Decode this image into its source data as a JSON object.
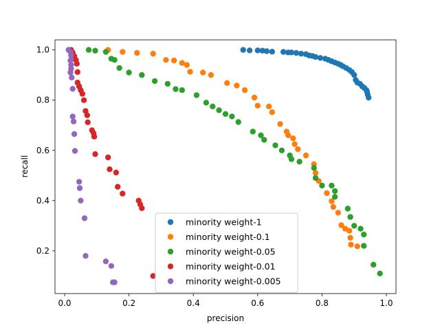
{
  "chart_data": {
    "type": "scatter",
    "title": "",
    "xlabel": "precision",
    "ylabel": "recall",
    "xlim": [
      -0.03,
      1.03
    ],
    "ylim": [
      0.03,
      1.04
    ],
    "xticks": [
      "0.0",
      "0.2",
      "0.4",
      "0.6",
      "0.8",
      "1.0"
    ],
    "yticks": [
      "0.2",
      "0.4",
      "0.6",
      "0.8",
      "1.0"
    ],
    "grid": false,
    "legend_position": "lower center",
    "series": [
      {
        "name": "minority weight-1",
        "color": "#1f77b4",
        "points": [
          [
            0.555,
            1.0
          ],
          [
            0.575,
            0.998
          ],
          [
            0.6,
            0.998
          ],
          [
            0.615,
            0.997
          ],
          [
            0.628,
            0.995
          ],
          [
            0.645,
            0.993
          ],
          [
            0.68,
            0.992
          ],
          [
            0.695,
            0.99
          ],
          [
            0.705,
            0.99
          ],
          [
            0.72,
            0.988
          ],
          [
            0.735,
            0.985
          ],
          [
            0.75,
            0.983
          ],
          [
            0.76,
            0.978
          ],
          [
            0.77,
            0.976
          ],
          [
            0.78,
            0.972
          ],
          [
            0.795,
            0.968
          ],
          [
            0.81,
            0.965
          ],
          [
            0.82,
            0.96
          ],
          [
            0.83,
            0.955
          ],
          [
            0.84,
            0.95
          ],
          [
            0.85,
            0.945
          ],
          [
            0.858,
            0.94
          ],
          [
            0.865,
            0.935
          ],
          [
            0.875,
            0.928
          ],
          [
            0.885,
            0.92
          ],
          [
            0.893,
            0.912
          ],
          [
            0.9,
            0.9
          ],
          [
            0.905,
            0.88
          ],
          [
            0.91,
            0.87
          ],
          [
            0.918,
            0.865
          ],
          [
            0.925,
            0.855
          ],
          [
            0.932,
            0.848
          ],
          [
            0.938,
            0.84
          ],
          [
            0.94,
            0.833
          ],
          [
            0.942,
            0.822
          ],
          [
            0.945,
            0.81
          ]
        ]
      },
      {
        "name": "minority weight-0.1",
        "color": "#ff7f0e",
        "points": [
          [
            0.135,
            1.0
          ],
          [
            0.18,
            0.992
          ],
          [
            0.225,
            0.988
          ],
          [
            0.275,
            0.985
          ],
          [
            0.315,
            0.96
          ],
          [
            0.34,
            0.958
          ],
          [
            0.365,
            0.948
          ],
          [
            0.38,
            0.94
          ],
          [
            0.39,
            0.913
          ],
          [
            0.43,
            0.91
          ],
          [
            0.455,
            0.9
          ],
          [
            0.505,
            0.868
          ],
          [
            0.535,
            0.858
          ],
          [
            0.56,
            0.84
          ],
          [
            0.59,
            0.81
          ],
          [
            0.6,
            0.778
          ],
          [
            0.635,
            0.775
          ],
          [
            0.645,
            0.752
          ],
          [
            0.67,
            0.705
          ],
          [
            0.69,
            0.675
          ],
          [
            0.695,
            0.66
          ],
          [
            0.71,
            0.648
          ],
          [
            0.715,
            0.625
          ],
          [
            0.725,
            0.605
          ],
          [
            0.75,
            0.58
          ],
          [
            0.775,
            0.545
          ],
          [
            0.78,
            0.51
          ],
          [
            0.79,
            0.478
          ],
          [
            0.815,
            0.43
          ],
          [
            0.83,
            0.398
          ],
          [
            0.835,
            0.375
          ],
          [
            0.85,
            0.352
          ],
          [
            0.86,
            0.302
          ],
          [
            0.872,
            0.288
          ],
          [
            0.885,
            0.28
          ],
          [
            0.888,
            0.252
          ],
          [
            0.89,
            0.225
          ],
          [
            0.91,
            0.218
          ]
        ]
      },
      {
        "name": "minority weight-0.05",
        "color": "#2ca02c",
        "points": [
          [
            0.075,
            1.0
          ],
          [
            0.095,
            0.997
          ],
          [
            0.128,
            0.992
          ],
          [
            0.145,
            0.965
          ],
          [
            0.155,
            0.96
          ],
          [
            0.17,
            0.928
          ],
          [
            0.2,
            0.91
          ],
          [
            0.24,
            0.9
          ],
          [
            0.28,
            0.876
          ],
          [
            0.32,
            0.865
          ],
          [
            0.345,
            0.844
          ],
          [
            0.365,
            0.84
          ],
          [
            0.41,
            0.82
          ],
          [
            0.44,
            0.79
          ],
          [
            0.46,
            0.775
          ],
          [
            0.48,
            0.76
          ],
          [
            0.5,
            0.745
          ],
          [
            0.52,
            0.735
          ],
          [
            0.54,
            0.713
          ],
          [
            0.585,
            0.675
          ],
          [
            0.61,
            0.66
          ],
          [
            0.62,
            0.642
          ],
          [
            0.655,
            0.62
          ],
          [
            0.675,
            0.6
          ],
          [
            0.7,
            0.58
          ],
          [
            0.705,
            0.565
          ],
          [
            0.73,
            0.555
          ],
          [
            0.775,
            0.53
          ],
          [
            0.78,
            0.49
          ],
          [
            0.8,
            0.46
          ],
          [
            0.83,
            0.46
          ],
          [
            0.84,
            0.438
          ],
          [
            0.84,
            0.415
          ],
          [
            0.88,
            0.368
          ],
          [
            0.888,
            0.335
          ],
          [
            0.9,
            0.3
          ],
          [
            0.92,
            0.288
          ],
          [
            0.93,
            0.265
          ],
          [
            0.93,
            0.22
          ],
          [
            0.96,
            0.145
          ],
          [
            0.98,
            0.11
          ]
        ]
      },
      {
        "name": "minority weight-0.01",
        "color": "#d62728",
        "points": [
          [
            0.02,
            1.0
          ],
          [
            0.025,
            0.99
          ],
          [
            0.03,
            0.975
          ],
          [
            0.035,
            0.96
          ],
          [
            0.038,
            0.945
          ],
          [
            0.04,
            0.912
          ],
          [
            0.04,
            0.87
          ],
          [
            0.045,
            0.855
          ],
          [
            0.05,
            0.84
          ],
          [
            0.055,
            0.825
          ],
          [
            0.06,
            0.8
          ],
          [
            0.065,
            0.757
          ],
          [
            0.07,
            0.74
          ],
          [
            0.072,
            0.712
          ],
          [
            0.085,
            0.68
          ],
          [
            0.09,
            0.668
          ],
          [
            0.092,
            0.655
          ],
          [
            0.095,
            0.585
          ],
          [
            0.135,
            0.572
          ],
          [
            0.14,
            0.525
          ],
          [
            0.16,
            0.512
          ],
          [
            0.165,
            0.455
          ],
          [
            0.18,
            0.428
          ],
          [
            0.23,
            0.4
          ],
          [
            0.235,
            0.385
          ],
          [
            0.24,
            0.37
          ],
          [
            0.275,
            0.1
          ]
        ]
      },
      {
        "name": "minority weight-0.005",
        "color": "#9467bd",
        "points": [
          [
            0.012,
            1.0
          ],
          [
            0.018,
            0.992
          ],
          [
            0.02,
            0.978
          ],
          [
            0.018,
            0.958
          ],
          [
            0.02,
            0.94
          ],
          [
            0.02,
            0.925
          ],
          [
            0.018,
            0.91
          ],
          [
            0.022,
            0.89
          ],
          [
            0.025,
            0.845
          ],
          [
            0.025,
            0.735
          ],
          [
            0.028,
            0.715
          ],
          [
            0.03,
            0.665
          ],
          [
            0.032,
            0.598
          ],
          [
            0.045,
            0.475
          ],
          [
            0.047,
            0.45
          ],
          [
            0.05,
            0.4
          ],
          [
            0.062,
            0.33
          ],
          [
            0.065,
            0.18
          ],
          [
            0.128,
            0.158
          ],
          [
            0.145,
            0.14
          ],
          [
            0.15,
            0.075
          ],
          [
            0.155,
            0.075
          ]
        ]
      }
    ]
  }
}
